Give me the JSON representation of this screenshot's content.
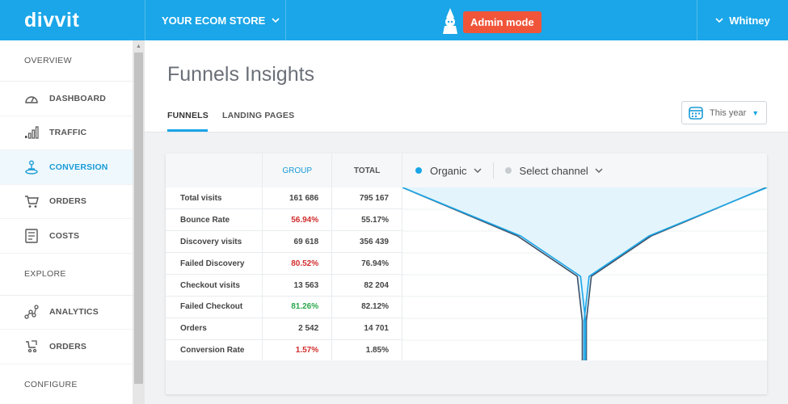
{
  "topbar": {
    "brand": "divvit",
    "store": "YOUR ECOM STORE",
    "admin_badge": "Admin mode",
    "user": "Whitney",
    "bg_color": "#1aa6e8",
    "admin_color": "#f0553a"
  },
  "sidebar": {
    "sections": [
      {
        "title": "OVERVIEW",
        "items": [
          {
            "label": "DASHBOARD",
            "icon": "dashboard-gauge-icon"
          },
          {
            "label": "TRAFFIC",
            "icon": "bar-chart-icon"
          },
          {
            "label": "CONVERSION",
            "icon": "funnel-person-icon",
            "active": true
          },
          {
            "label": "ORDERS",
            "icon": "shopping-cart-icon"
          },
          {
            "label": "COSTS",
            "icon": "receipt-icon"
          }
        ]
      },
      {
        "title": "EXPLORE",
        "items": [
          {
            "label": "ANALYTICS",
            "icon": "analytics-nodes-icon"
          },
          {
            "label": "ORDERS",
            "icon": "cart-outline-icon"
          }
        ]
      },
      {
        "title": "CONFIGURE",
        "items": []
      }
    ]
  },
  "header": {
    "title": "Funnels Insights",
    "tabs": [
      {
        "label": "FUNNELS",
        "active": true
      },
      {
        "label": "LANDING PAGES",
        "active": false
      }
    ],
    "date_select": "This year"
  },
  "table": {
    "columns": [
      "",
      "GROUP",
      "TOTAL"
    ],
    "rows": [
      {
        "label": "Total visits",
        "group": "161 686",
        "total": "795 167",
        "tone": "normal"
      },
      {
        "label": "Bounce Rate",
        "group": "56.94%",
        "total": "55.17%",
        "tone": "red"
      },
      {
        "label": "Discovery visits",
        "group": "69 618",
        "total": "356 439",
        "tone": "normal"
      },
      {
        "label": "Failed Discovery",
        "group": "80.52%",
        "total": "76.94%",
        "tone": "red"
      },
      {
        "label": "Checkout visits",
        "group": "13 563",
        "total": "82 204",
        "tone": "normal"
      },
      {
        "label": "Failed Checkout",
        "group": "81.26%",
        "total": "82.12%",
        "tone": "green"
      },
      {
        "label": "Orders",
        "group": "2 542",
        "total": "14 701",
        "tone": "normal"
      },
      {
        "label": "Conversion Rate",
        "group": "1.57%",
        "total": "1.85%",
        "tone": "red"
      }
    ]
  },
  "chart_header": {
    "channel_1": "Organic",
    "channel_1_color": "#1aa6e8",
    "channel_2": "Select channel",
    "channel_2_color": "#c8ccd0"
  },
  "chart_data": {
    "type": "area",
    "series": [
      {
        "name": "Organic",
        "values": [
          161686,
          69618,
          13563,
          2542
        ]
      },
      {
        "name": "Total",
        "values": [
          795167,
          356439,
          82204,
          14701
        ]
      }
    ],
    "categories": [
      "Total visits",
      "Discovery visits",
      "Checkout visits",
      "Orders"
    ]
  }
}
